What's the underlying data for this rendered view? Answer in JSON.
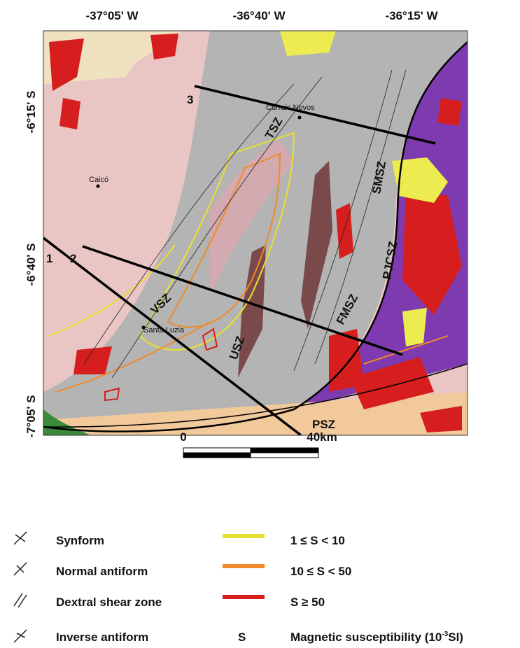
{
  "map": {
    "lon_labels": [
      "-37°05' W",
      "-36°40' W",
      "-36°15' W"
    ],
    "lat_labels": [
      "-6°15' S",
      "-6°40' S",
      "-7°05' S"
    ],
    "places": [
      "Currais Novos",
      "Caicó",
      "Santa Luzia"
    ],
    "zones": [
      "TSZ",
      "SMSZ",
      "PJCSZ",
      "FMSZ",
      "VSZ",
      "USZ",
      "PSZ"
    ],
    "profiles": [
      "1",
      "2",
      "3"
    ]
  },
  "scale_bar": {
    "start": "0",
    "end": "40km"
  },
  "legend": {
    "structures": [
      "Synform",
      "Normal antiform",
      "Dextral shear zone",
      "Inverse antiform"
    ],
    "susceptibility": [
      "1 ≤ S < 10",
      "10 ≤ S < 50",
      "S ≥ 50"
    ],
    "symbol": "S",
    "note": {
      "text": "Magnetic susceptibility (10",
      "sup": "-3",
      "unit": "SI)"
    }
  }
}
